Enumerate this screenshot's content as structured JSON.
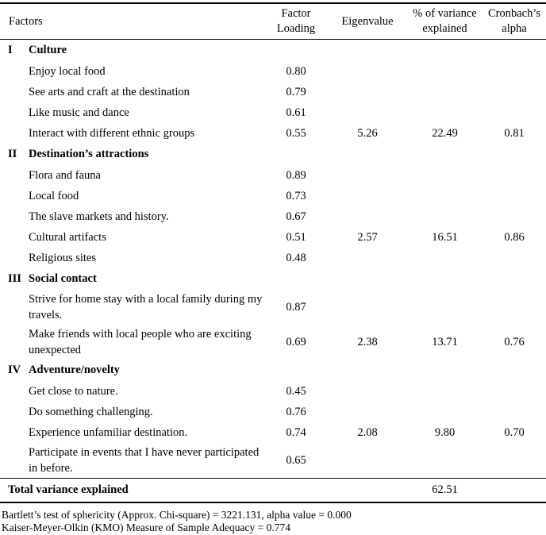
{
  "table": {
    "headers": [
      {
        "label": "Factors"
      },
      {
        "label": "Factor Loading"
      },
      {
        "label": "Eigenvalue"
      },
      {
        "label": "% of variance explained"
      },
      {
        "label": "Cronbach’s alpha"
      }
    ],
    "rows": [
      {
        "type": "section",
        "numeral": "I",
        "label": "Culture"
      },
      {
        "type": "item",
        "label": "Enjoy local food",
        "loading": "0.80",
        "eigenvalue": "",
        "variance": "",
        "alpha": ""
      },
      {
        "type": "item",
        "label": "See arts and craft at the destination",
        "loading": "0.79",
        "eigenvalue": "",
        "variance": "",
        "alpha": ""
      },
      {
        "type": "item",
        "label": "Like music and dance",
        "loading": "0.61",
        "eigenvalue": "",
        "variance": "",
        "alpha": ""
      },
      {
        "type": "item",
        "label": "Interact with different ethnic groups",
        "loading": "0.55",
        "eigenvalue": "5.26",
        "variance": "22.49",
        "alpha": "0.81"
      },
      {
        "type": "section",
        "numeral": "II",
        "label": "Destination’s attractions"
      },
      {
        "type": "item",
        "label": "Flora and fauna",
        "loading": "0.89",
        "eigenvalue": "",
        "variance": "",
        "alpha": ""
      },
      {
        "type": "item",
        "label": "Local food",
        "loading": "0.73",
        "eigenvalue": "",
        "variance": "",
        "alpha": ""
      },
      {
        "type": "item",
        "label": "The slave markets and history.",
        "loading": "0.67",
        "eigenvalue": "",
        "variance": "",
        "alpha": ""
      },
      {
        "type": "item",
        "label": "Cultural artifacts",
        "loading": "0.51",
        "eigenvalue": "2.57",
        "variance": "16.51",
        "alpha": "0.86"
      },
      {
        "type": "item",
        "label": "Religious sites",
        "loading": "0.48",
        "eigenvalue": "",
        "variance": "",
        "alpha": ""
      },
      {
        "type": "section",
        "numeral": "III",
        "label": "Social contact"
      },
      {
        "type": "item2",
        "label": "Strive for home stay with a local family during my travels.",
        "loading": "0.87",
        "eigenvalue": "",
        "variance": "",
        "alpha": ""
      },
      {
        "type": "item2",
        "label": "Make friends with local people who are exciting unexpected",
        "loading": "0.69",
        "eigenvalue": "2.38",
        "variance": "13.71",
        "alpha": "0.76"
      },
      {
        "type": "section",
        "numeral": "IV",
        "label": "Adventure/novelty"
      },
      {
        "type": "item",
        "label": "Get close to nature.",
        "loading": "0.45",
        "eigenvalue": "",
        "variance": "",
        "alpha": ""
      },
      {
        "type": "item",
        "label": "Do something challenging.",
        "loading": "0.76",
        "eigenvalue": "",
        "variance": "",
        "alpha": ""
      },
      {
        "type": "item",
        "label": "Experience unfamiliar destination.",
        "loading": "0.74",
        "eigenvalue": "2.08",
        "variance": "9.80",
        "alpha": "0.70"
      },
      {
        "type": "item2",
        "label": "Participate in events that I have never participated in before.",
        "loading": "0.65",
        "eigenvalue": "",
        "variance": "",
        "alpha": ""
      }
    ],
    "total": {
      "label": "Total variance explained",
      "variance": "62.51"
    }
  },
  "footnotes": [
    "Bartlett’s test of sphericity (Approx. Chi-square) = 3221.131, alpha value = 0.000",
    "Kaiser-Meyer-Olkin (KMO) Measure of Sample Adequacy = 0.774"
  ]
}
